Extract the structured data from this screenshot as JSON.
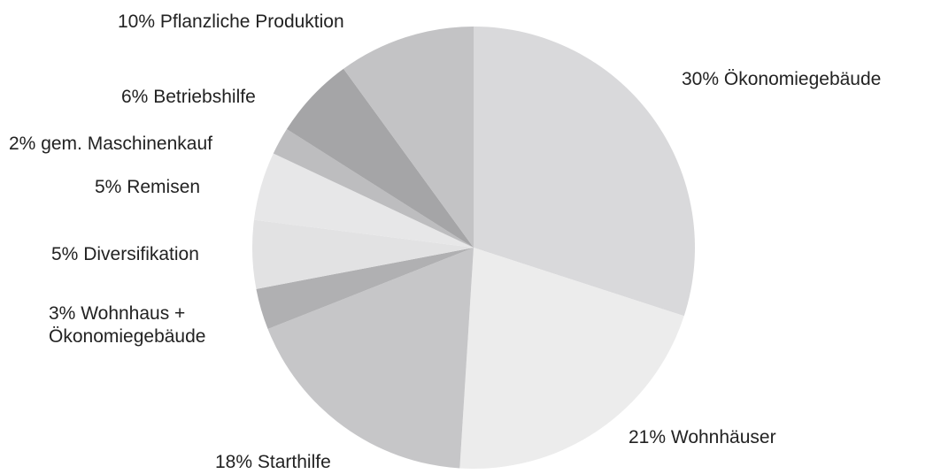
{
  "chart_data": {
    "type": "pie",
    "categories": [
      "Ökonomiegebäude",
      "Wohnhäuser",
      "Starthilfe",
      "Wohnhaus + Ökonomiegebäude",
      "Diversifikation",
      "Remisen",
      "gem. Maschinenkauf",
      "Betriebshilfe",
      "Pflanzliche Produktion"
    ],
    "values": [
      30,
      21,
      18,
      3,
      5,
      5,
      2,
      6,
      10
    ],
    "value_labels": [
      "30%",
      "21%",
      "18%",
      "3%",
      "5%",
      "5%",
      "2%",
      "6%",
      "10%"
    ],
    "colors": [
      "#d9d9db",
      "#ececec",
      "#c6c6c8",
      "#b0b0b2",
      "#e2e2e3",
      "#e7e7e8",
      "#bdbdbf",
      "#a5a5a7",
      "#c3c3c5"
    ]
  }
}
